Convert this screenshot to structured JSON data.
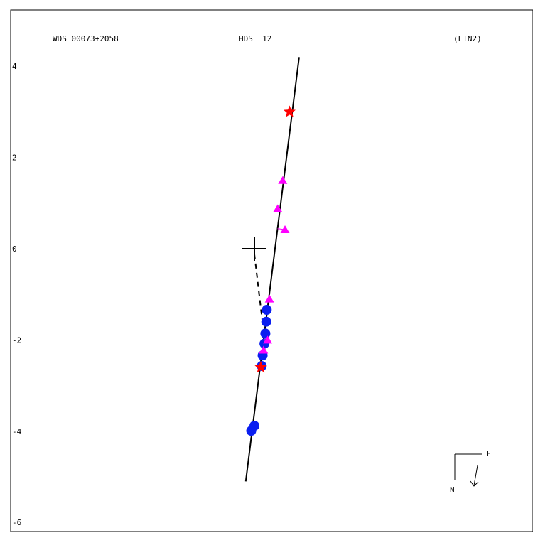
{
  "header": {
    "left": "WDS 00073+2058",
    "center": "HDS  12",
    "right": "(LIN2)"
  },
  "compass": {
    "east": "E",
    "north": "N"
  },
  "chart_data": {
    "type": "scatter",
    "title": "",
    "xlabel": "",
    "ylabel": "",
    "xlim": [
      -5.6,
      6.0
    ],
    "ylim": [
      -6.0,
      5.2
    ],
    "yticks": [
      4,
      2,
      0,
      -2,
      -4,
      -6
    ],
    "ytick_labels": [
      "4",
      "2",
      "0",
      "-2",
      "-4",
      "-6"
    ],
    "grid": false,
    "legend": "none",
    "colors": {
      "blue": "#0a1ef0",
      "magenta": "#ff00ff",
      "red": "#ff0000",
      "line": "#000000"
    },
    "orbit_line": {
      "from": [
        -0.19,
        -5.1
      ],
      "to": [
        0.98,
        4.2
      ]
    },
    "primary": [
      0,
      0
    ],
    "dashed_link": {
      "from": [
        0,
        0
      ],
      "to": [
        0.17,
        -1.55
      ]
    },
    "series": [
      {
        "marker": "circle",
        "color": "#0a1ef0",
        "points": [
          [
            0.27,
            -1.34
          ],
          [
            0.26,
            -1.6
          ],
          [
            0.24,
            -1.86
          ],
          [
            0.22,
            -2.08
          ],
          [
            0.18,
            -2.34
          ],
          [
            0.16,
            -2.57
          ],
          [
            0.0,
            -3.88
          ],
          [
            -0.07,
            -3.99
          ]
        ]
      },
      {
        "marker": "triangle",
        "color": "#ff00ff",
        "points": [
          [
            0.62,
            1.5
          ],
          [
            0.51,
            0.88
          ],
          [
            0.67,
            0.42
          ],
          [
            0.33,
            -1.1
          ],
          [
            0.29,
            -2.0
          ],
          [
            0.2,
            -2.22
          ]
        ]
      },
      {
        "marker": "star",
        "color": "#ff0000",
        "points": [
          [
            0.77,
            3.0
          ],
          [
            0.14,
            -2.6
          ]
        ]
      }
    ]
  }
}
